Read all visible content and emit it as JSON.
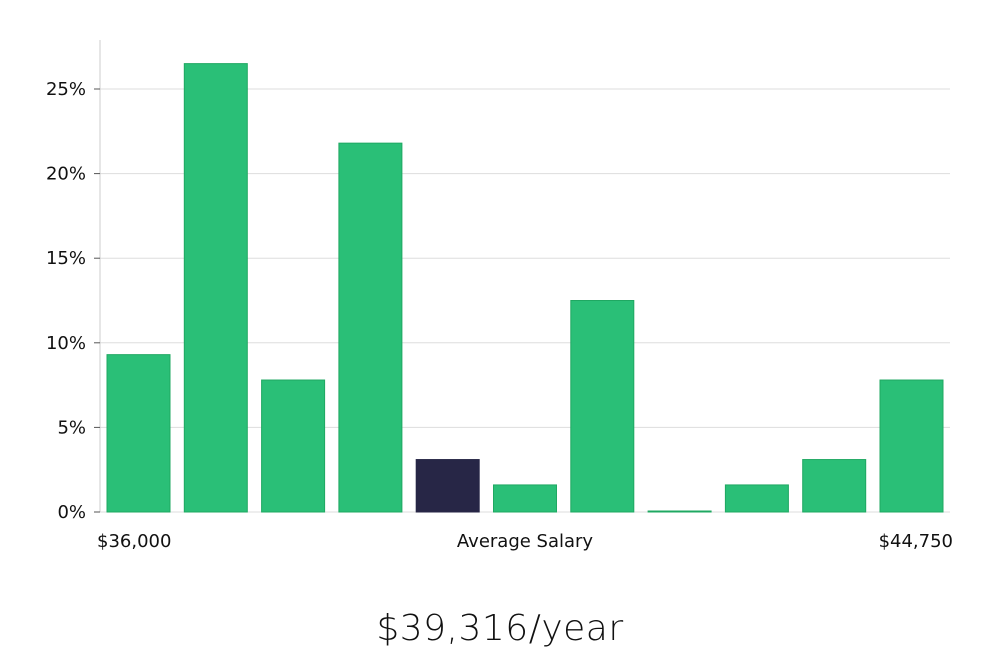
{
  "chart_data": {
    "type": "bar",
    "title": "",
    "xlabel": "Average Salary",
    "ylabel": "",
    "x_range_labels": {
      "min": "$36,000",
      "max": "$44,750"
    },
    "ylim": [
      0,
      27.5
    ],
    "yticks": [
      0,
      5,
      10,
      15,
      20,
      25
    ],
    "ytick_labels": [
      "0%",
      "5%",
      "10%",
      "15%",
      "20%",
      "25%"
    ],
    "values": [
      9.3,
      26.5,
      7.8,
      21.8,
      3.1,
      1.6,
      12.5,
      0.05,
      1.6,
      3.1,
      7.8
    ],
    "highlight_index": 4,
    "grid": true,
    "colors": {
      "bar": "#2abf77",
      "bar_edge": "#1fa862",
      "highlight": "#272646",
      "grid": "#dddddd",
      "axis": "#cccccc"
    }
  },
  "summary": {
    "salary": "$39,316/year"
  }
}
